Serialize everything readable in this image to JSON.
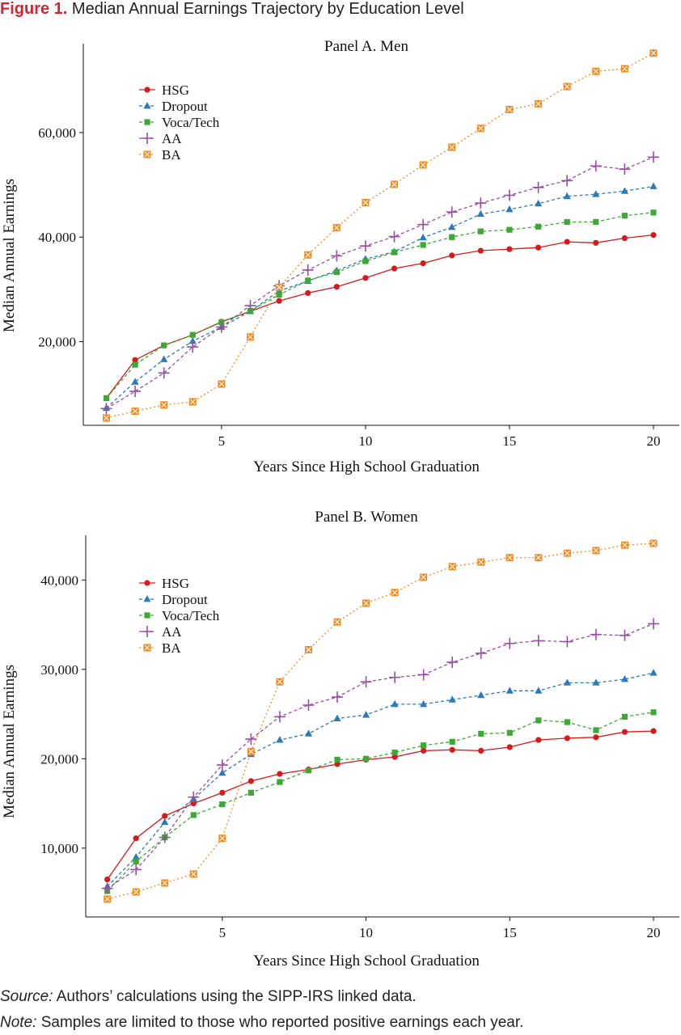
{
  "figure": {
    "label": "Figure 1.",
    "title": "Median Annual Earnings Trajectory by Education Level"
  },
  "notes": {
    "source_label": "Source:",
    "source_text": " Authors’ calculations using the SIPP-IRS linked data.",
    "note_label": "Note:",
    "note_text": " Samples are limited to those who reported positive earnings each year."
  },
  "colors": {
    "HSG": "#d7191c",
    "Dropout": "#2c7bb6",
    "Voca/Tech": "#3aaa35",
    "AA": "#984ea3",
    "BA": "#f4891f"
  },
  "chart_data": [
    {
      "type": "line",
      "title": "Panel A. Men",
      "xlabel": "Years Since High School Graduation",
      "ylabel": "Median Annual Earnings",
      "xlim": [
        0.2,
        20.9
      ],
      "ylim": [
        4000,
        77000
      ],
      "xticks": [
        5,
        10,
        15,
        20
      ],
      "yticks": [
        20000,
        40000,
        60000
      ],
      "ytick_labels": [
        "20,000",
        "40,000",
        "60,000"
      ],
      "legend_position": "top-left",
      "grid": false,
      "x": [
        1,
        2,
        3,
        4,
        5,
        6,
        7,
        8,
        9,
        10,
        11,
        12,
        13,
        14,
        15,
        16,
        17,
        18,
        19,
        20
      ],
      "series": [
        {
          "name": "HSG",
          "marker": "circle",
          "dash": "solid",
          "values": [
            9200,
            16500,
            19300,
            21300,
            23800,
            25800,
            27800,
            29300,
            30500,
            32200,
            34000,
            35000,
            36500,
            37400,
            37700,
            38000,
            39100,
            38900,
            39800,
            40400
          ]
        },
        {
          "name": "Dropout",
          "marker": "triangle",
          "dash": "dashed",
          "values": [
            7300,
            12300,
            16600,
            20100,
            22800,
            25800,
            29700,
            31600,
            33600,
            35800,
            37200,
            39900,
            41900,
            44400,
            45300,
            46400,
            47800,
            48200,
            48800,
            49700
          ]
        },
        {
          "name": "Voca/Tech",
          "marker": "square",
          "dash": "dashed",
          "values": [
            9200,
            15600,
            19300,
            21300,
            23700,
            25900,
            29000,
            31700,
            33300,
            35400,
            37100,
            38500,
            40000,
            41100,
            41400,
            42000,
            42900,
            42900,
            44100,
            44700
          ]
        },
        {
          "name": "AA",
          "marker": "plus",
          "dash": "dashed",
          "values": [
            7200,
            10500,
            14000,
            19000,
            22800,
            26900,
            30700,
            33700,
            36400,
            38300,
            40100,
            42400,
            44800,
            46500,
            48000,
            49500,
            50800,
            53600,
            53000,
            55300
          ]
        },
        {
          "name": "BA",
          "marker": "xsquare",
          "dash": "dotted",
          "values": [
            5400,
            6700,
            7900,
            8500,
            11900,
            20900,
            30400,
            36600,
            41800,
            46600,
            50100,
            53800,
            57200,
            60800,
            64400,
            65500,
            68800,
            71700,
            72200,
            75200
          ]
        }
      ]
    },
    {
      "type": "line",
      "title": "Panel B. Women",
      "xlabel": "Years Since High School Graduation",
      "ylabel": "Median Annual Earnings",
      "xlim": [
        0.25,
        20.9
      ],
      "ylim": [
        2300,
        45000
      ],
      "xticks": [
        5,
        10,
        15,
        20
      ],
      "yticks": [
        10000,
        20000,
        30000,
        40000
      ],
      "ytick_labels": [
        "10,000",
        "20,000",
        "30,000",
        "40,000"
      ],
      "legend_position": "top-left",
      "grid": false,
      "x": [
        1,
        2,
        3,
        4,
        5,
        6,
        7,
        8,
        9,
        10,
        11,
        12,
        13,
        14,
        15,
        16,
        17,
        18,
        19,
        20
      ],
      "series": [
        {
          "name": "HSG",
          "marker": "circle",
          "dash": "solid",
          "values": [
            6500,
            11100,
            13600,
            15000,
            16200,
            17500,
            18300,
            18800,
            19400,
            19900,
            20200,
            20900,
            21000,
            20900,
            21300,
            22100,
            22300,
            22400,
            23000,
            23100
          ]
        },
        {
          "name": "Dropout",
          "marker": "triangle",
          "dash": "dashed",
          "values": [
            5700,
            9000,
            12900,
            15500,
            18400,
            20500,
            22100,
            22800,
            24500,
            24900,
            26100,
            26100,
            26600,
            27100,
            27600,
            27600,
            28500,
            28500,
            28900,
            29600
          ]
        },
        {
          "name": "Voca/Tech",
          "marker": "square",
          "dash": "dashed",
          "values": [
            5200,
            8500,
            11200,
            13700,
            14900,
            16200,
            17400,
            18700,
            19900,
            20000,
            20700,
            21500,
            21900,
            22800,
            22900,
            24300,
            24100,
            23200,
            24700,
            25200
          ]
        },
        {
          "name": "AA",
          "marker": "plus",
          "dash": "dashed",
          "values": [
            5500,
            7600,
            11200,
            15700,
            19300,
            22200,
            24700,
            26000,
            26900,
            28600,
            29100,
            29400,
            30800,
            31800,
            32900,
            33200,
            33100,
            33900,
            33800,
            35100
          ]
        },
        {
          "name": "BA",
          "marker": "xsquare",
          "dash": "dotted",
          "values": [
            4300,
            5100,
            6100,
            7100,
            11100,
            20800,
            28600,
            32200,
            35300,
            37400,
            38600,
            40300,
            41500,
            42000,
            42500,
            42500,
            43000,
            43300,
            43900,
            44100
          ]
        }
      ]
    }
  ]
}
